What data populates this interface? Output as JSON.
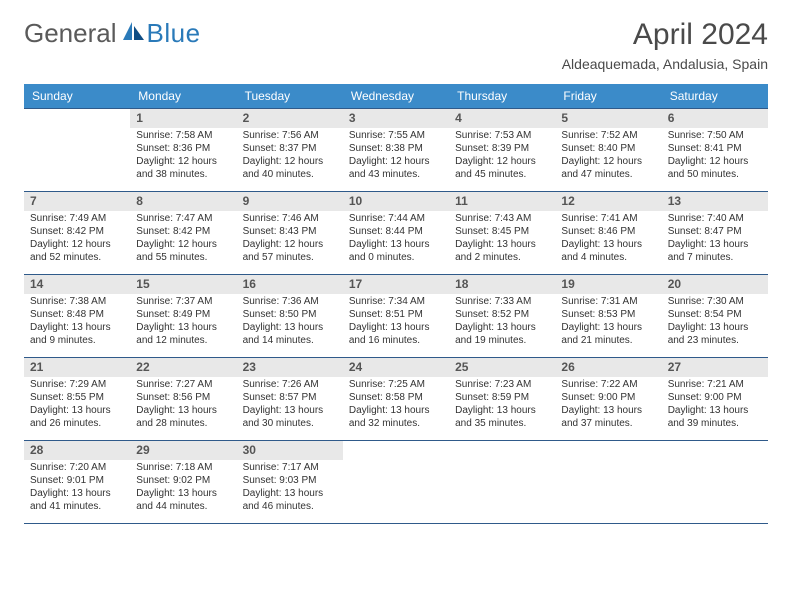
{
  "brand": {
    "general": "General",
    "blue": "Blue"
  },
  "title": {
    "month": "April 2024",
    "location": "Aldeaquemada, Andalusia, Spain"
  },
  "colors": {
    "header_bg": "#3b8bc9",
    "header_fg": "#ffffff",
    "rule": "#2f5a8a",
    "daynum_bg": "#e8e8e8",
    "brand_blue": "#2a7ab9",
    "text": "#333333"
  },
  "dow": [
    "Sunday",
    "Monday",
    "Tuesday",
    "Wednesday",
    "Thursday",
    "Friday",
    "Saturday"
  ],
  "layout": {
    "cols": 7,
    "rows": 5,
    "first_weekday_index": 1,
    "days_in_month": 30
  },
  "days": [
    {
      "n": 1,
      "sunrise": "7:58 AM",
      "sunset": "8:36 PM",
      "daylight": "12 hours and 38 minutes."
    },
    {
      "n": 2,
      "sunrise": "7:56 AM",
      "sunset": "8:37 PM",
      "daylight": "12 hours and 40 minutes."
    },
    {
      "n": 3,
      "sunrise": "7:55 AM",
      "sunset": "8:38 PM",
      "daylight": "12 hours and 43 minutes."
    },
    {
      "n": 4,
      "sunrise": "7:53 AM",
      "sunset": "8:39 PM",
      "daylight": "12 hours and 45 minutes."
    },
    {
      "n": 5,
      "sunrise": "7:52 AM",
      "sunset": "8:40 PM",
      "daylight": "12 hours and 47 minutes."
    },
    {
      "n": 6,
      "sunrise": "7:50 AM",
      "sunset": "8:41 PM",
      "daylight": "12 hours and 50 minutes."
    },
    {
      "n": 7,
      "sunrise": "7:49 AM",
      "sunset": "8:42 PM",
      "daylight": "12 hours and 52 minutes."
    },
    {
      "n": 8,
      "sunrise": "7:47 AM",
      "sunset": "8:42 PM",
      "daylight": "12 hours and 55 minutes."
    },
    {
      "n": 9,
      "sunrise": "7:46 AM",
      "sunset": "8:43 PM",
      "daylight": "12 hours and 57 minutes."
    },
    {
      "n": 10,
      "sunrise": "7:44 AM",
      "sunset": "8:44 PM",
      "daylight": "13 hours and 0 minutes."
    },
    {
      "n": 11,
      "sunrise": "7:43 AM",
      "sunset": "8:45 PM",
      "daylight": "13 hours and 2 minutes."
    },
    {
      "n": 12,
      "sunrise": "7:41 AM",
      "sunset": "8:46 PM",
      "daylight": "13 hours and 4 minutes."
    },
    {
      "n": 13,
      "sunrise": "7:40 AM",
      "sunset": "8:47 PM",
      "daylight": "13 hours and 7 minutes."
    },
    {
      "n": 14,
      "sunrise": "7:38 AM",
      "sunset": "8:48 PM",
      "daylight": "13 hours and 9 minutes."
    },
    {
      "n": 15,
      "sunrise": "7:37 AM",
      "sunset": "8:49 PM",
      "daylight": "13 hours and 12 minutes."
    },
    {
      "n": 16,
      "sunrise": "7:36 AM",
      "sunset": "8:50 PM",
      "daylight": "13 hours and 14 minutes."
    },
    {
      "n": 17,
      "sunrise": "7:34 AM",
      "sunset": "8:51 PM",
      "daylight": "13 hours and 16 minutes."
    },
    {
      "n": 18,
      "sunrise": "7:33 AM",
      "sunset": "8:52 PM",
      "daylight": "13 hours and 19 minutes."
    },
    {
      "n": 19,
      "sunrise": "7:31 AM",
      "sunset": "8:53 PM",
      "daylight": "13 hours and 21 minutes."
    },
    {
      "n": 20,
      "sunrise": "7:30 AM",
      "sunset": "8:54 PM",
      "daylight": "13 hours and 23 minutes."
    },
    {
      "n": 21,
      "sunrise": "7:29 AM",
      "sunset": "8:55 PM",
      "daylight": "13 hours and 26 minutes."
    },
    {
      "n": 22,
      "sunrise": "7:27 AM",
      "sunset": "8:56 PM",
      "daylight": "13 hours and 28 minutes."
    },
    {
      "n": 23,
      "sunrise": "7:26 AM",
      "sunset": "8:57 PM",
      "daylight": "13 hours and 30 minutes."
    },
    {
      "n": 24,
      "sunrise": "7:25 AM",
      "sunset": "8:58 PM",
      "daylight": "13 hours and 32 minutes."
    },
    {
      "n": 25,
      "sunrise": "7:23 AM",
      "sunset": "8:59 PM",
      "daylight": "13 hours and 35 minutes."
    },
    {
      "n": 26,
      "sunrise": "7:22 AM",
      "sunset": "9:00 PM",
      "daylight": "13 hours and 37 minutes."
    },
    {
      "n": 27,
      "sunrise": "7:21 AM",
      "sunset": "9:00 PM",
      "daylight": "13 hours and 39 minutes."
    },
    {
      "n": 28,
      "sunrise": "7:20 AM",
      "sunset": "9:01 PM",
      "daylight": "13 hours and 41 minutes."
    },
    {
      "n": 29,
      "sunrise": "7:18 AM",
      "sunset": "9:02 PM",
      "daylight": "13 hours and 44 minutes."
    },
    {
      "n": 30,
      "sunrise": "7:17 AM",
      "sunset": "9:03 PM",
      "daylight": "13 hours and 46 minutes."
    }
  ],
  "labels": {
    "sunrise": "Sunrise: ",
    "sunset": "Sunset: ",
    "daylight": "Daylight: "
  }
}
